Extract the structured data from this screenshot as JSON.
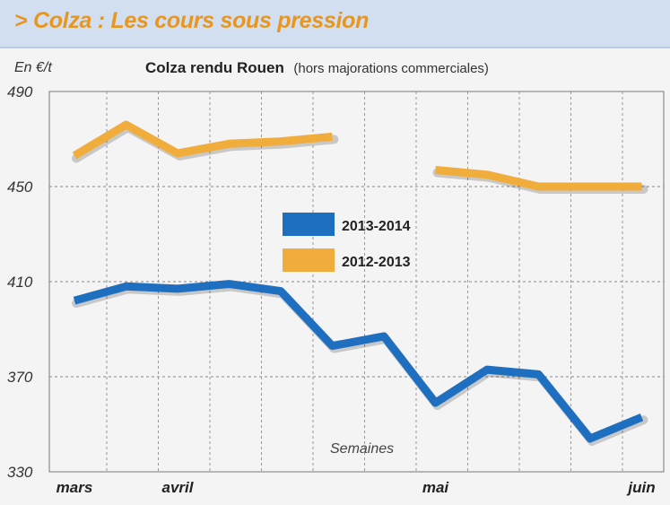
{
  "header": {
    "title": "> Colza : Les cours sous pression"
  },
  "chart_data": {
    "type": "line",
    "title": "Colza rendu Rouen",
    "subtitle": "(hors majorations commerciales)",
    "ylabel": "En €/t",
    "xlabel": "Semaines",
    "ylim": [
      330,
      490
    ],
    "yticks": [
      330,
      370,
      410,
      450,
      490
    ],
    "xlim": [
      0,
      11.5
    ],
    "xticks": [
      {
        "label": "mars",
        "x": 0
      },
      {
        "label": "avril",
        "x": 2
      },
      {
        "label": "mai",
        "x": 7
      },
      {
        "label": "juin",
        "x": 11
      }
    ],
    "grid": true,
    "legend_position": "center",
    "series": [
      {
        "name": "2013-2014",
        "color": "#1f6fc0",
        "points": [
          [
            0,
            402
          ],
          [
            1,
            408
          ],
          [
            2,
            407
          ],
          [
            3,
            409
          ],
          [
            4,
            406
          ],
          [
            5,
            383
          ],
          [
            6,
            387
          ],
          [
            7,
            359
          ],
          [
            8,
            373
          ],
          [
            9,
            371
          ],
          [
            10,
            344
          ],
          [
            11,
            353
          ]
        ]
      },
      {
        "name": "2012-2013",
        "color": "#f1ad3c",
        "points": [
          [
            0,
            463
          ],
          [
            1,
            476
          ],
          [
            2,
            464
          ],
          [
            3,
            468
          ],
          [
            4,
            469
          ],
          [
            5,
            471
          ],
          null,
          [
            7,
            457
          ],
          [
            8,
            455
          ],
          [
            9,
            450
          ],
          [
            10,
            450
          ],
          [
            11,
            450
          ]
        ]
      }
    ]
  }
}
